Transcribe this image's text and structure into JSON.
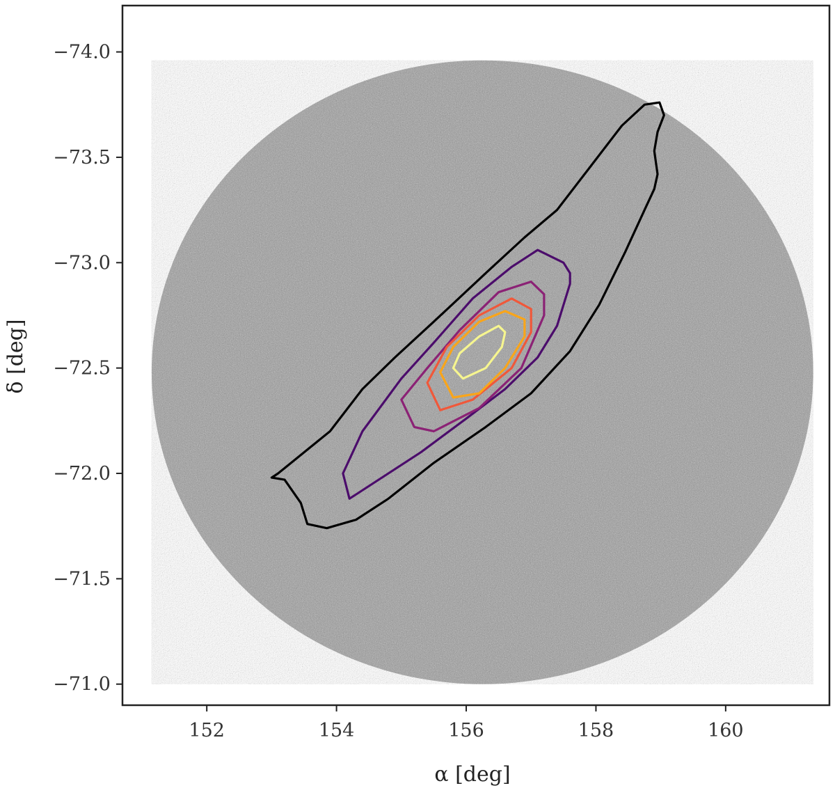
{
  "chart_data": {
    "type": "scatter",
    "title": "",
    "xlabel": "α [deg]",
    "ylabel": "δ [deg]",
    "xlim": [
      150.7,
      161.6
    ],
    "ylim": [
      -70.9,
      -74.22
    ],
    "y_axis_inverted": true,
    "grid": false,
    "x_ticks": [
      152,
      154,
      156,
      158,
      160
    ],
    "y_ticks": [
      -74.0,
      -73.5,
      -73.0,
      -72.5,
      -72.0,
      -71.5,
      -71.0
    ],
    "x_tick_labels": [
      "152",
      "154",
      "156",
      "158",
      "160"
    ],
    "y_tick_labels": [
      "−74.0",
      "−73.5",
      "−73.0",
      "−72.5",
      "−72.0",
      "−71.5",
      "−71.0"
    ],
    "background_points": {
      "shape": "circular field of stars",
      "center": [
        156.25,
        -72.48
      ],
      "ra_half_width_deg": 5.1,
      "dec_half_width_deg": 1.48,
      "color": "#9a9a9a"
    },
    "series": [
      {
        "level": 1,
        "color": "#000000",
        "points": [
          [
            153.0,
            -71.98
          ],
          [
            153.2,
            -71.97
          ],
          [
            153.45,
            -71.86
          ],
          [
            153.55,
            -71.76
          ],
          [
            153.85,
            -71.74
          ],
          [
            154.3,
            -71.78
          ],
          [
            154.8,
            -71.88
          ],
          [
            155.5,
            -72.05
          ],
          [
            156.3,
            -72.22
          ],
          [
            157.0,
            -72.38
          ],
          [
            157.6,
            -72.58
          ],
          [
            158.05,
            -72.8
          ],
          [
            158.45,
            -73.05
          ],
          [
            158.75,
            -73.25
          ],
          [
            158.9,
            -73.35
          ],
          [
            158.95,
            -73.42
          ],
          [
            158.9,
            -73.53
          ],
          [
            158.95,
            -73.62
          ],
          [
            159.05,
            -73.7
          ],
          [
            158.98,
            -73.76
          ],
          [
            158.75,
            -73.75
          ],
          [
            158.4,
            -73.65
          ],
          [
            157.9,
            -73.45
          ],
          [
            157.4,
            -73.25
          ],
          [
            156.9,
            -73.12
          ],
          [
            156.3,
            -72.95
          ],
          [
            155.5,
            -72.72
          ],
          [
            154.9,
            -72.55
          ],
          [
            154.4,
            -72.4
          ],
          [
            153.9,
            -72.2
          ],
          [
            153.5,
            -72.1
          ],
          [
            153.1,
            -72.0
          ],
          [
            153.0,
            -71.98
          ]
        ]
      },
      {
        "level": 2,
        "color": "#4b0c6b",
        "points": [
          [
            154.2,
            -71.88
          ],
          [
            154.3,
            -71.9
          ],
          [
            155.3,
            -72.1
          ],
          [
            156.0,
            -72.26
          ],
          [
            156.6,
            -72.4
          ],
          [
            157.1,
            -72.55
          ],
          [
            157.4,
            -72.7
          ],
          [
            157.6,
            -72.9
          ],
          [
            157.6,
            -72.95
          ],
          [
            157.5,
            -73.0
          ],
          [
            157.1,
            -73.06
          ],
          [
            156.7,
            -72.98
          ],
          [
            156.1,
            -72.83
          ],
          [
            155.5,
            -72.62
          ],
          [
            155.0,
            -72.45
          ],
          [
            154.4,
            -72.2
          ],
          [
            154.1,
            -72.0
          ],
          [
            154.2,
            -71.88
          ]
        ]
      },
      {
        "level": 3,
        "color": "#8b2275",
        "points": [
          [
            155.0,
            -72.35
          ],
          [
            155.2,
            -72.22
          ],
          [
            155.5,
            -72.2
          ],
          [
            156.2,
            -72.31
          ],
          [
            156.85,
            -72.5
          ],
          [
            157.2,
            -72.75
          ],
          [
            157.2,
            -72.85
          ],
          [
            157.0,
            -72.91
          ],
          [
            156.5,
            -72.86
          ],
          [
            155.9,
            -72.68
          ],
          [
            155.4,
            -72.5
          ],
          [
            155.0,
            -72.35
          ]
        ]
      },
      {
        "level": 4,
        "color": "#f0583a",
        "points": [
          [
            155.4,
            -72.43
          ],
          [
            155.6,
            -72.3
          ],
          [
            156.1,
            -72.35
          ],
          [
            156.7,
            -72.5
          ],
          [
            157.0,
            -72.67
          ],
          [
            157.0,
            -72.78
          ],
          [
            156.7,
            -72.83
          ],
          [
            156.2,
            -72.75
          ],
          [
            155.7,
            -72.6
          ],
          [
            155.4,
            -72.43
          ]
        ]
      },
      {
        "level": 5,
        "color": "#f9a51a",
        "points": [
          [
            155.6,
            -72.48
          ],
          [
            155.8,
            -72.36
          ],
          [
            156.2,
            -72.38
          ],
          [
            156.6,
            -72.5
          ],
          [
            156.9,
            -72.65
          ],
          [
            156.9,
            -72.73
          ],
          [
            156.6,
            -72.77
          ],
          [
            156.2,
            -72.72
          ],
          [
            155.8,
            -72.6
          ],
          [
            155.6,
            -72.48
          ]
        ]
      },
      {
        "level": 6,
        "color": "#f6f58f",
        "points": [
          [
            155.8,
            -72.5
          ],
          [
            155.95,
            -72.45
          ],
          [
            156.3,
            -72.5
          ],
          [
            156.55,
            -72.6
          ],
          [
            156.6,
            -72.67
          ],
          [
            156.5,
            -72.7
          ],
          [
            156.2,
            -72.65
          ],
          [
            155.9,
            -72.57
          ],
          [
            155.8,
            -72.5
          ]
        ]
      }
    ]
  }
}
